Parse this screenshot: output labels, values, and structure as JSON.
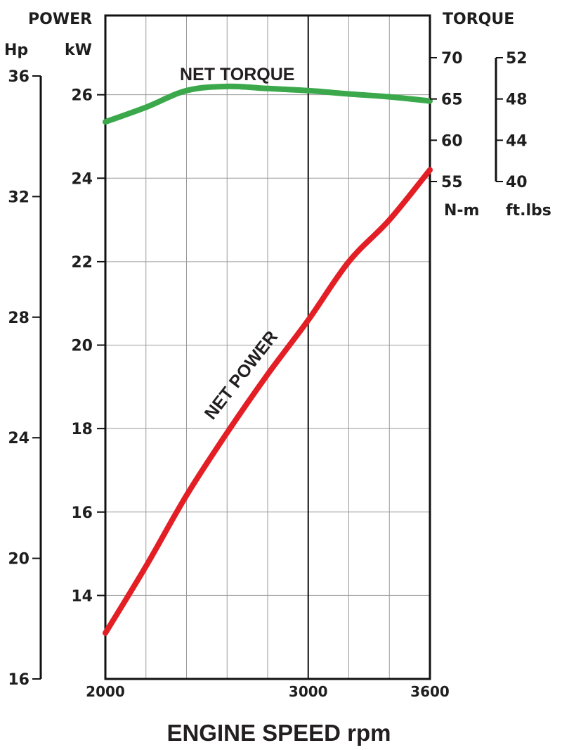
{
  "chart_data": {
    "type": "line",
    "title": "",
    "xlabel": "ENGINE SPEED rpm",
    "x_range": [
      2000,
      3600
    ],
    "x_ticks": [
      2000,
      3000,
      3600
    ],
    "grid": true,
    "axes": {
      "power_header": "POWER",
      "torque_header": "TORQUE",
      "hp": {
        "unit": "Hp",
        "ticks": [
          36,
          32,
          28,
          24,
          20,
          16
        ],
        "range": [
          16,
          36
        ]
      },
      "kw": {
        "unit": "kW",
        "ticks": [
          26,
          24,
          22,
          20,
          18,
          16,
          14
        ],
        "range": [
          12,
          27.9
        ]
      },
      "nm": {
        "unit": "N-m",
        "ticks": [
          70,
          65,
          60,
          55
        ],
        "range": [
          55,
          70
        ]
      },
      "ftlbs": {
        "unit": "ft.lbs",
        "ticks": [
          52,
          48,
          44,
          40
        ],
        "range": [
          40,
          52
        ]
      }
    },
    "series": [
      {
        "name": "NET TORQUE",
        "color": "#3aa84b",
        "axis": "kw",
        "x": [
          2000,
          2200,
          2400,
          2600,
          2800,
          3000,
          3200,
          3400,
          3600
        ],
        "y": [
          25.35,
          25.7,
          26.1,
          26.2,
          26.15,
          26.1,
          26.02,
          25.95,
          25.85
        ]
      },
      {
        "name": "NET POWER",
        "color": "#e31e24",
        "axis": "kw",
        "x": [
          2000,
          2200,
          2400,
          2600,
          2800,
          3000,
          3200,
          3400,
          3600
        ],
        "y": [
          13.1,
          14.7,
          16.4,
          17.9,
          19.3,
          20.6,
          22.0,
          23.0,
          24.2
        ]
      }
    ]
  }
}
